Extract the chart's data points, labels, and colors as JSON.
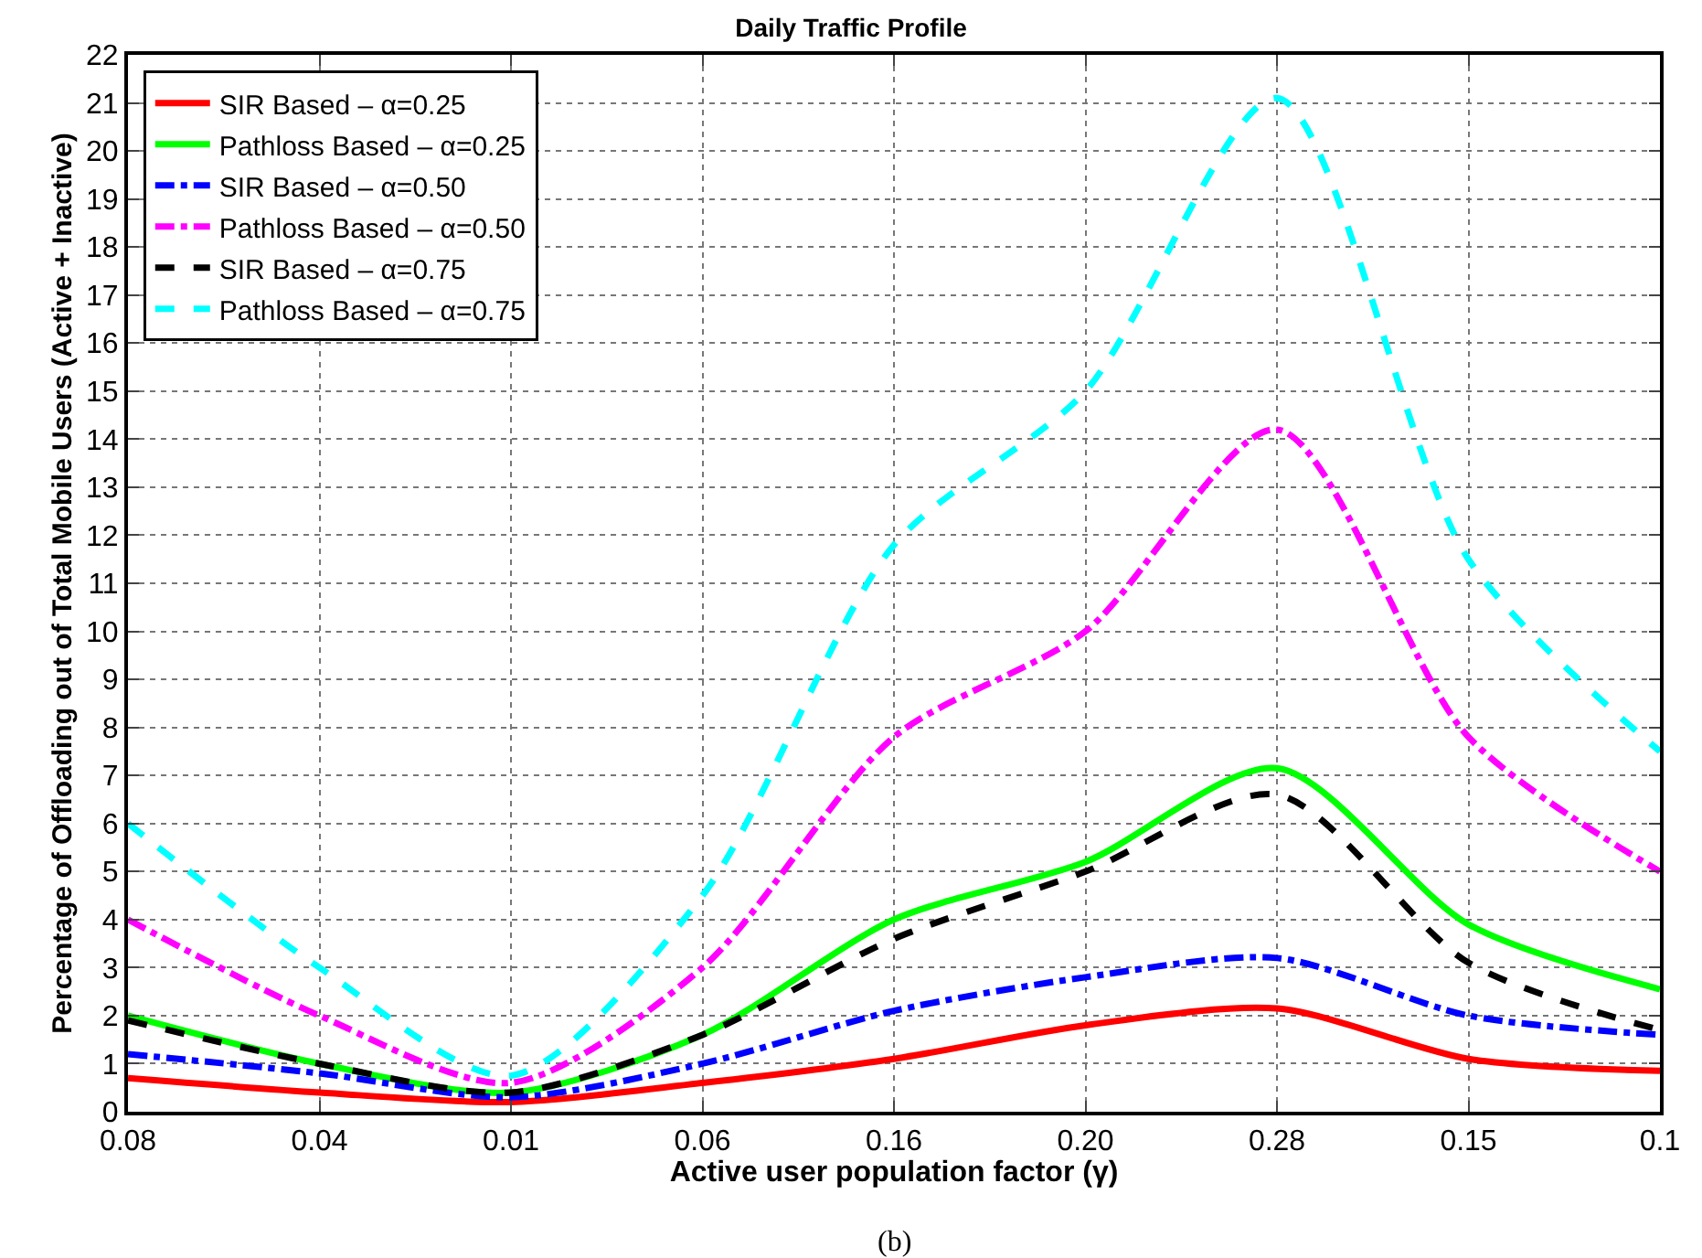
{
  "chart_data": {
    "type": "line",
    "title": "Daily Traffic Profile",
    "xlabel": "Active user population factor (γ)",
    "ylabel": "Percentage of Offloading out of Total Mobile Users (Active + Inactive)",
    "annotations": [
      "(b)"
    ],
    "categories": [
      "0.08",
      "0.04",
      "0.01",
      "0.06",
      "0.16",
      "0.20",
      "0.28",
      "0.15",
      "0.1"
    ],
    "series": [
      {
        "name": "SIR Based – α=0.25",
        "color": "#ff0000",
        "line_style": "solid",
        "values": [
          0.7,
          0.4,
          0.2,
          0.6,
          1.1,
          1.8,
          2.15,
          1.1,
          0.85
        ]
      },
      {
        "name": "Pathloss Based – α=0.25",
        "color": "#00ff00",
        "line_style": "solid",
        "values": [
          2.0,
          1.0,
          0.4,
          1.6,
          4.0,
          5.2,
          7.15,
          3.9,
          2.55
        ]
      },
      {
        "name": "SIR Based – α=0.50",
        "color": "#0000ff",
        "line_style": "dashdot",
        "values": [
          1.2,
          0.8,
          0.3,
          1.0,
          2.1,
          2.8,
          3.2,
          2.0,
          1.6
        ]
      },
      {
        "name": "Pathloss Based – α=0.50",
        "color": "#ff00ff",
        "line_style": "dashdot",
        "values": [
          4.0,
          2.0,
          0.6,
          3.0,
          7.8,
          10.0,
          14.2,
          7.8,
          5.0
        ]
      },
      {
        "name": "SIR Based – α=0.75",
        "color": "#000000",
        "line_style": "dashed",
        "values": [
          1.9,
          1.0,
          0.4,
          1.6,
          3.6,
          5.0,
          6.6,
          3.1,
          1.7
        ]
      },
      {
        "name": "Pathloss Based – α=0.75",
        "color": "#00ffff",
        "line_style": "dashed",
        "values": [
          6.0,
          3.0,
          0.75,
          4.5,
          11.8,
          15.0,
          21.1,
          11.5,
          7.5
        ]
      }
    ],
    "ylim": [
      0,
      22
    ],
    "yticks": [
      0,
      1,
      2,
      3,
      4,
      5,
      6,
      7,
      8,
      9,
      10,
      11,
      12,
      13,
      14,
      15,
      16,
      17,
      18,
      19,
      20,
      21,
      22
    ],
    "grid": true,
    "legend": "top left",
    "marker": "none"
  }
}
